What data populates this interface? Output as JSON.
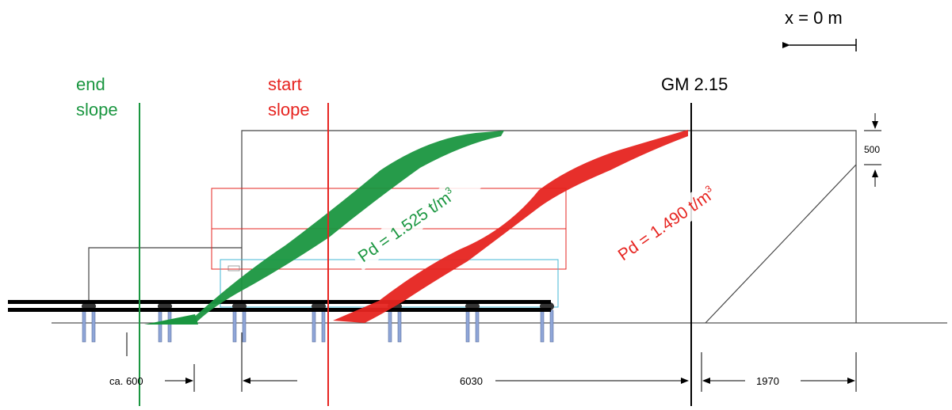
{
  "x_origin_label": "x = 0 m",
  "gauge_label": "GM 2.15",
  "end_slope": {
    "line1": "end",
    "line2": "slope",
    "color": "#1a9640"
  },
  "start_slope": {
    "line1": "start",
    "line2": "slope",
    "color": "#e62420"
  },
  "density_green": {
    "text": "Pd = 1.525 t/m",
    "sup": "3",
    "color": "#1a9640"
  },
  "density_red": {
    "text": "Pd = 1.490 t/m",
    "sup": "3",
    "color": "#e62420"
  },
  "dimensions": {
    "left": "ca. 600",
    "middle": "6030",
    "right": "1970",
    "height": "500"
  }
}
